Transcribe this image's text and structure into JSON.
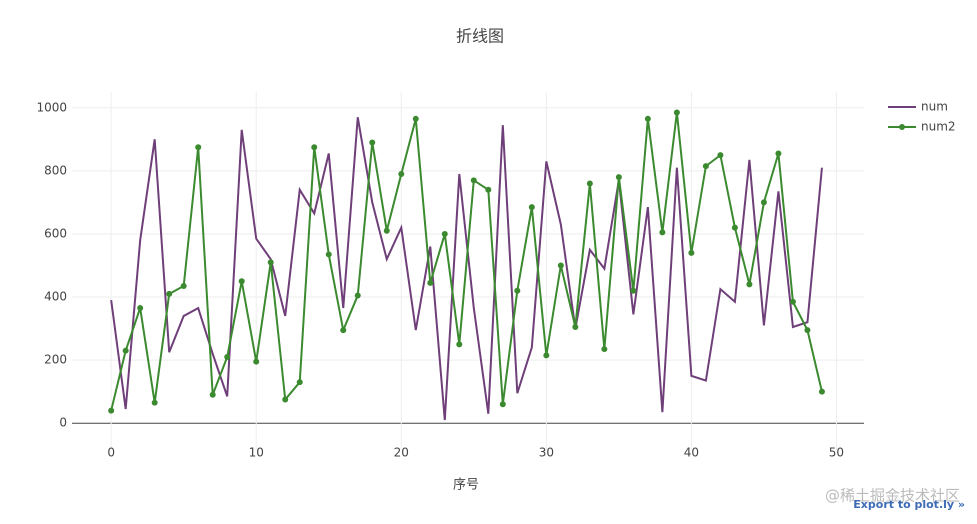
{
  "chart_data": {
    "type": "line",
    "title": "折线图",
    "x_label": "序号",
    "x": [
      0,
      1,
      2,
      3,
      4,
      5,
      6,
      7,
      8,
      9,
      10,
      11,
      12,
      13,
      14,
      15,
      16,
      17,
      18,
      19,
      20,
      21,
      22,
      23,
      24,
      25,
      26,
      27,
      28,
      29,
      30,
      31,
      32,
      33,
      34,
      35,
      36,
      37,
      38,
      39,
      40,
      41,
      42,
      43,
      44,
      45,
      46,
      47,
      48,
      49
    ],
    "series": [
      {
        "name": "num",
        "color": "#6f3f79",
        "markers": false,
        "values": [
          390,
          45,
          580,
          900,
          225,
          340,
          365,
          220,
          85,
          930,
          585,
          520,
          340,
          740,
          665,
          855,
          365,
          970,
          700,
          520,
          620,
          295,
          560,
          10,
          790,
          365,
          30,
          945,
          95,
          240,
          830,
          630,
          300,
          550,
          490,
          770,
          345,
          685,
          35,
          810,
          150,
          135,
          425,
          385,
          835,
          310,
          735,
          305,
          320,
          810
        ]
      },
      {
        "name": "num2",
        "color": "#3b8a2f",
        "markers": true,
        "values": [
          40,
          230,
          365,
          65,
          410,
          435,
          875,
          90,
          210,
          450,
          195,
          510,
          75,
          130,
          875,
          535,
          295,
          405,
          890,
          610,
          790,
          965,
          445,
          600,
          250,
          770,
          740,
          60,
          420,
          685,
          215,
          500,
          305,
          760,
          235,
          780,
          420,
          965,
          605,
          985,
          540,
          815,
          850,
          620,
          440,
          700,
          855,
          385,
          295,
          100
        ]
      }
    ],
    "xlim": [
      -2.7,
      51.9
    ],
    "xticks": [
      0,
      10,
      20,
      30,
      40,
      50
    ],
    "ylim": [
      -85,
      1050
    ],
    "yticks": [
      0,
      200,
      400,
      600,
      800,
      1000
    ],
    "grid": true,
    "legend": "top-right",
    "watermark": "@稀土掘金技术社区",
    "export_link": "Export to plot.ly »"
  }
}
